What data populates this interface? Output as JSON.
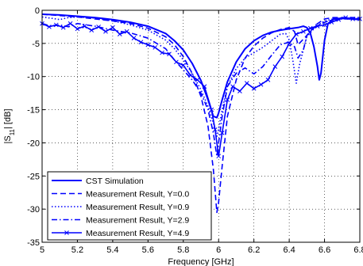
{
  "chart_data": {
    "type": "line",
    "title": "",
    "xlabel": "Frequency [GHz]",
    "ylabel_main": "|S",
    "ylabel_sub": "11",
    "ylabel_tail": "| [dB]",
    "xlim": [
      5,
      6.8
    ],
    "ylim": [
      -35,
      0
    ],
    "xticks": [
      5,
      5.2,
      5.4,
      5.6,
      5.8,
      6,
      6.2,
      6.4,
      6.6,
      6.8
    ],
    "xtick_labels": [
      "5",
      "5.2",
      "5.4",
      "5.6",
      "5.8",
      "6",
      "6.2",
      "6.4",
      "6.6",
      "6.8"
    ],
    "yticks": [
      0,
      -5,
      -10,
      -15,
      -20,
      -25,
      -30,
      -35
    ],
    "ytick_labels": [
      "0",
      "-5",
      "-10",
      "-15",
      "-20",
      "-25",
      "-30",
      "-35"
    ],
    "grid": true,
    "legend_position": "bottom-left",
    "line_color": "#0000ff",
    "series": [
      {
        "name": "CST Simulation",
        "style": "solid",
        "x": [
          5.0,
          5.1,
          5.2,
          5.3,
          5.4,
          5.5,
          5.6,
          5.7,
          5.75,
          5.8,
          5.85,
          5.9,
          5.94,
          5.97,
          5.99,
          6.0,
          6.02,
          6.05,
          6.1,
          6.15,
          6.2,
          6.25,
          6.3,
          6.35,
          6.4,
          6.45,
          6.48,
          6.5,
          6.52,
          6.54,
          6.56,
          6.57,
          6.58,
          6.6,
          6.62,
          6.65,
          6.7,
          6.75,
          6.8
        ],
        "y": [
          -0.6,
          -0.7,
          -0.9,
          -1.1,
          -1.4,
          -1.8,
          -2.4,
          -3.5,
          -4.6,
          -6.0,
          -8.0,
          -10.6,
          -13.5,
          -16.0,
          -16.2,
          -15.5,
          -13.5,
          -10.8,
          -7.8,
          -5.8,
          -4.6,
          -3.8,
          -3.3,
          -3.0,
          -2.8,
          -2.6,
          -2.4,
          -2.6,
          -3.5,
          -5.5,
          -8.5,
          -10.5,
          -9.5,
          -4.5,
          -2.0,
          -1.3,
          -1.2,
          -1.3,
          -1.4
        ]
      },
      {
        "name": "Measurement Result, Y=0.0",
        "style": "dashed",
        "x": [
          5.0,
          5.1,
          5.2,
          5.3,
          5.4,
          5.5,
          5.6,
          5.7,
          5.75,
          5.8,
          5.85,
          5.9,
          5.94,
          5.97,
          5.99,
          6.0,
          6.02,
          6.05,
          6.1,
          6.15,
          6.2,
          6.25,
          6.3,
          6.35,
          6.4,
          6.43,
          6.45,
          6.5,
          6.55,
          6.6,
          6.65,
          6.7,
          6.75,
          6.8
        ],
        "y": [
          -0.6,
          -0.8,
          -1.0,
          -1.3,
          -1.6,
          -2.0,
          -2.7,
          -4.0,
          -5.2,
          -7.0,
          -9.5,
          -13.0,
          -17.5,
          -24.0,
          -30.5,
          -29.0,
          -23.5,
          -16.0,
          -10.5,
          -7.2,
          -5.4,
          -4.2,
          -3.4,
          -2.9,
          -2.6,
          -3.2,
          -5.2,
          -3.8,
          -2.2,
          -1.3,
          -1.1,
          -1.1,
          -1.1,
          -1.1
        ]
      },
      {
        "name": "Measurement Result, Y=0.9",
        "style": "dotted",
        "x": [
          5.0,
          5.05,
          5.1,
          5.15,
          5.2,
          5.3,
          5.4,
          5.5,
          5.6,
          5.7,
          5.75,
          5.8,
          5.85,
          5.9,
          5.94,
          5.97,
          5.99,
          6.0,
          6.02,
          6.05,
          6.1,
          6.15,
          6.2,
          6.25,
          6.3,
          6.35,
          6.38,
          6.4,
          6.42,
          6.44,
          6.46,
          6.5,
          6.55,
          6.6,
          6.65,
          6.7,
          6.75,
          6.8
        ],
        "y": [
          -1.0,
          -1.2,
          -1.4,
          -1.1,
          -1.0,
          -1.2,
          -1.6,
          -2.2,
          -3.0,
          -4.5,
          -5.8,
          -7.5,
          -9.5,
          -12.0,
          -14.5,
          -17.0,
          -19.0,
          -18.0,
          -15.0,
          -11.5,
          -8.8,
          -7.2,
          -6.4,
          -5.6,
          -4.6,
          -3.6,
          -3.5,
          -4.5,
          -7.5,
          -11.0,
          -8.0,
          -4.0,
          -2.5,
          -1.6,
          -1.3,
          -1.2,
          -1.2,
          -1.2
        ]
      },
      {
        "name": "Measurement Result, Y=2.9",
        "style": "dashdot",
        "x": [
          5.0,
          5.05,
          5.1,
          5.15,
          5.2,
          5.3,
          5.4,
          5.5,
          5.6,
          5.7,
          5.75,
          5.8,
          5.85,
          5.9,
          5.94,
          5.97,
          5.99,
          6.0,
          6.02,
          6.05,
          6.1,
          6.15,
          6.2,
          6.25,
          6.3,
          6.35,
          6.4,
          6.43,
          6.45,
          6.48,
          6.5,
          6.55,
          6.6,
          6.65,
          6.7,
          6.75,
          6.8
        ],
        "y": [
          -2.0,
          -2.4,
          -2.2,
          -2.5,
          -2.0,
          -2.4,
          -3.0,
          -3.4,
          -4.2,
          -5.8,
          -7.5,
          -9.0,
          -10.5,
          -12.5,
          -15.0,
          -18.5,
          -22.0,
          -20.0,
          -16.0,
          -11.5,
          -9.5,
          -8.7,
          -9.6,
          -8.5,
          -6.8,
          -5.2,
          -4.8,
          -5.5,
          -7.2,
          -6.0,
          -3.8,
          -2.4,
          -1.8,
          -1.4,
          -1.3,
          -1.3,
          -1.3
        ]
      },
      {
        "name": "Measurement Result, Y=4.9",
        "style": "x-marker",
        "x": [
          5.0,
          5.04,
          5.08,
          5.12,
          5.16,
          5.2,
          5.24,
          5.28,
          5.32,
          5.36,
          5.4,
          5.44,
          5.48,
          5.52,
          5.56,
          5.6,
          5.64,
          5.68,
          5.72,
          5.76,
          5.8,
          5.84,
          5.88,
          5.92,
          5.96,
          5.98,
          6.0,
          6.02,
          6.05,
          6.08,
          6.12,
          6.16,
          6.2,
          6.24,
          6.28,
          6.32,
          6.36,
          6.4,
          6.44,
          6.48,
          6.52,
          6.56,
          6.6,
          6.64,
          6.68,
          6.72,
          6.76,
          6.8
        ],
        "y": [
          -2.0,
          -2.5,
          -2.2,
          -2.6,
          -2.0,
          -2.8,
          -2.4,
          -3.0,
          -2.5,
          -3.2,
          -2.6,
          -3.6,
          -3.2,
          -4.2,
          -4.8,
          -5.2,
          -5.6,
          -6.4,
          -6.6,
          -7.8,
          -8.3,
          -9.8,
          -10.5,
          -11.5,
          -15.0,
          -18.0,
          -22.0,
          -18.5,
          -13.5,
          -11.5,
          -12.2,
          -11.0,
          -11.8,
          -11.2,
          -10.5,
          -8.5,
          -7.0,
          -5.0,
          -3.6,
          -3.2,
          -2.7,
          -2.4,
          -2.2,
          -1.8,
          -1.4,
          -1.1,
          -1.3,
          -1.3
        ]
      }
    ]
  }
}
